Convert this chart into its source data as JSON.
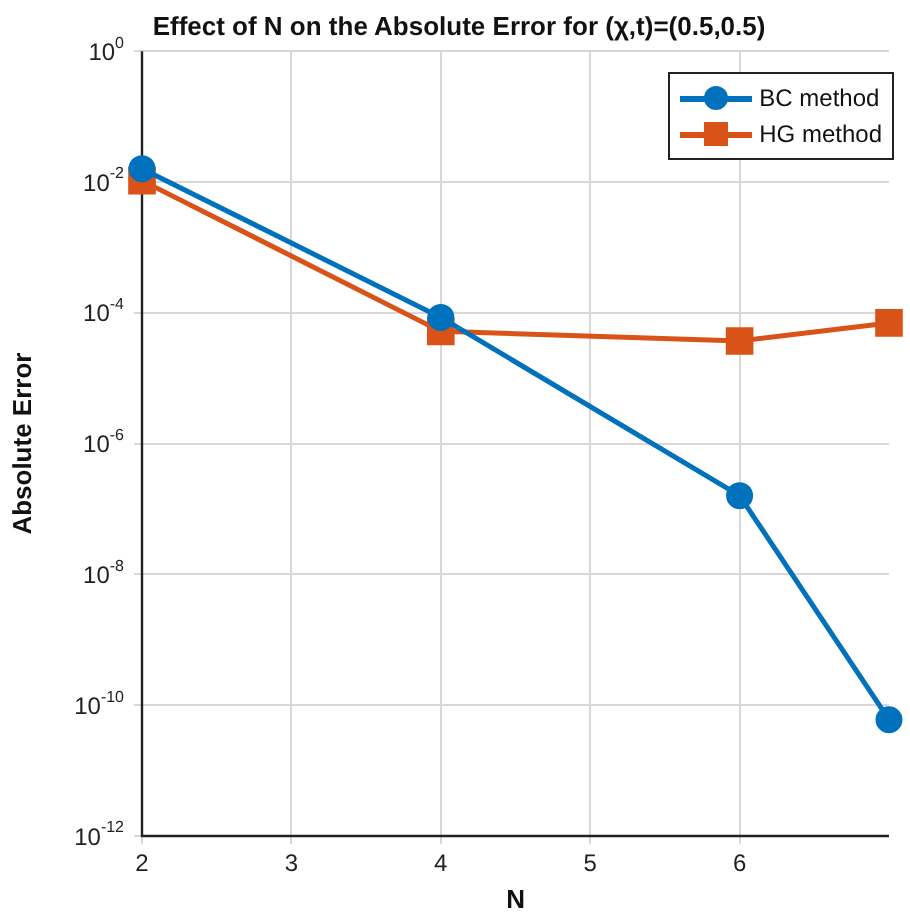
{
  "chart_data": {
    "type": "line",
    "title": "Effect of N on the Absolute Error for (χ,t)=(0.5,0.5)",
    "xlabel": "N",
    "ylabel": "Absolute Error",
    "x": [
      2,
      4,
      6,
      7
    ],
    "series": [
      {
        "name": "BC method",
        "color": "#0072bd",
        "marker": "circle",
        "values": [
          0.016,
          8.5e-05,
          1.6e-07,
          6e-11
        ]
      },
      {
        "name": "HG method",
        "color": "#d95319",
        "marker": "square",
        "values": [
          0.0105,
          5.2e-05,
          3.7e-05,
          7e-05
        ]
      }
    ],
    "xlim": [
      2,
      7
    ],
    "xticks": [
      2,
      3,
      4,
      5,
      6
    ],
    "ylim": [
      1e-12,
      1
    ],
    "yticks": [
      {
        "value": 1e-12,
        "label": "10$^{-12}$"
      },
      {
        "value": 1e-10,
        "label": "10$^{-10}$"
      },
      {
        "value": 1e-08,
        "label": "10$^{-8}$"
      },
      {
        "value": 1e-06,
        "label": "10$^{-6}$"
      },
      {
        "value": 0.0001,
        "label": "10$^{-4}$"
      },
      {
        "value": 0.01,
        "label": "10$^{-2}$"
      },
      {
        "value": 1,
        "label": "10$^{0}$"
      }
    ],
    "log": "y",
    "grid": true,
    "legend": "top right",
    "line_style": "solid"
  }
}
